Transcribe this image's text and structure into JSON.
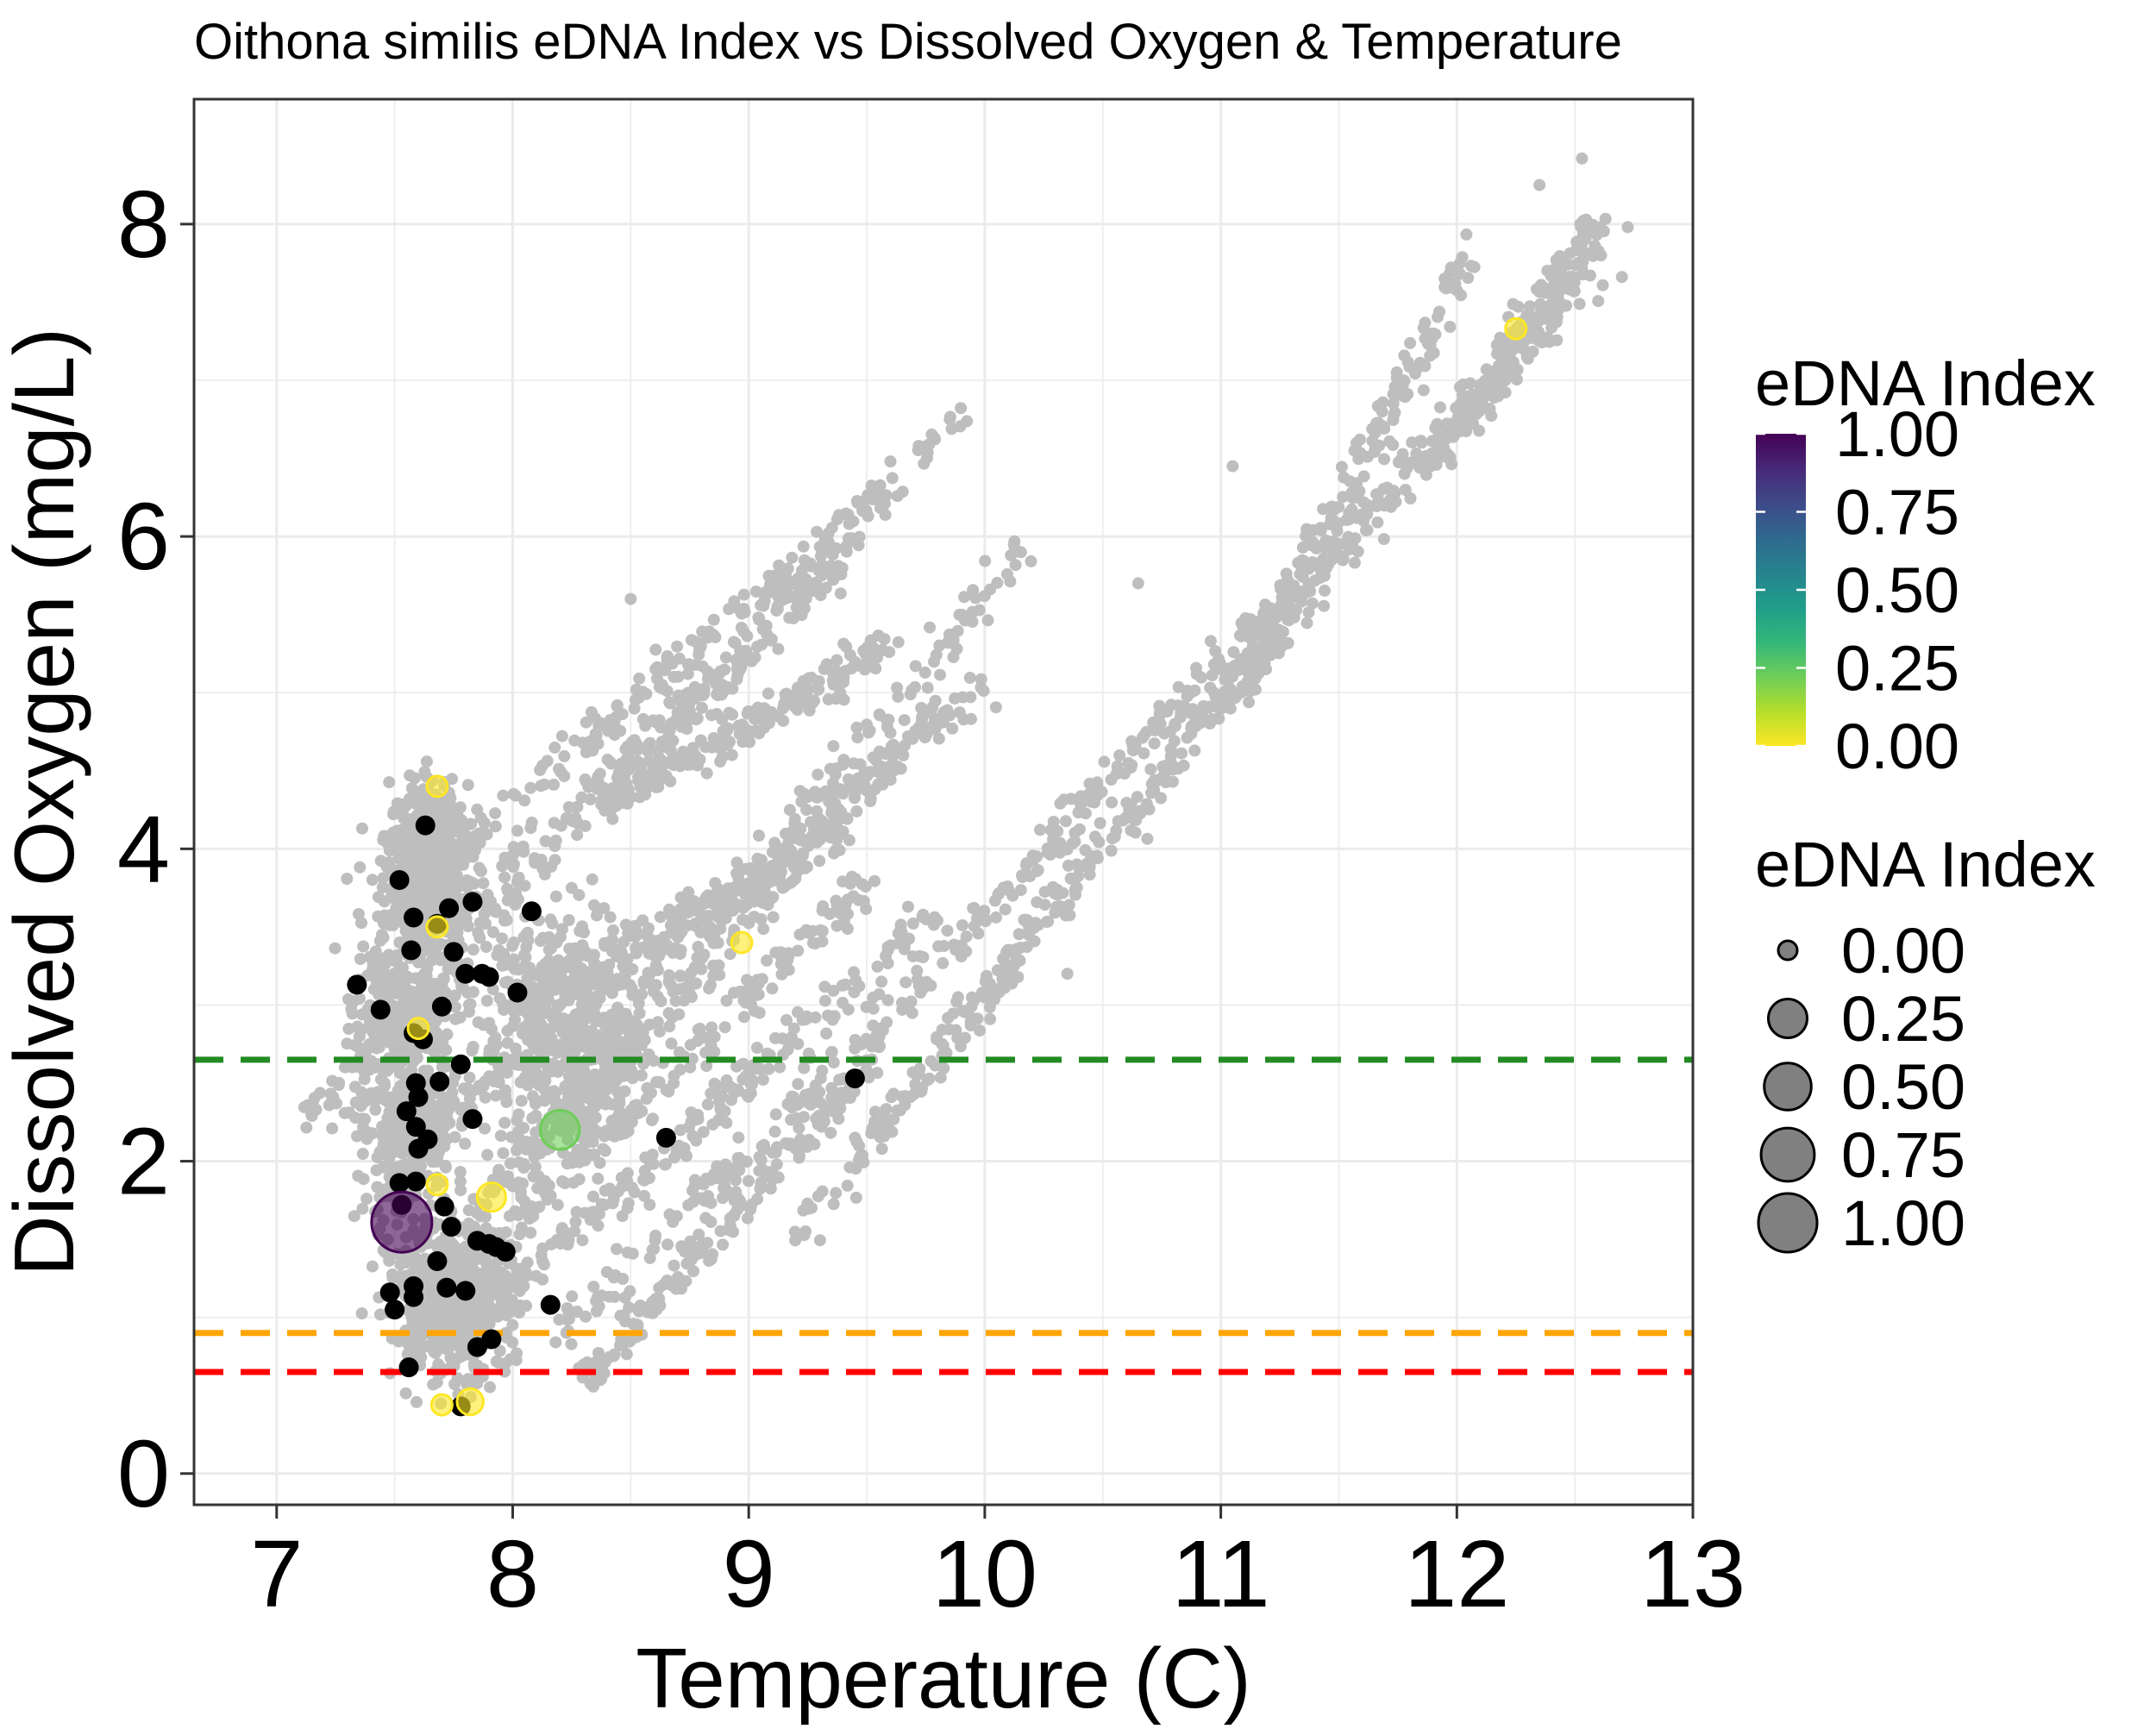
{
  "chart_data": {
    "type": "scatter",
    "title": "Oithona similis eDNA Index vs Dissolved Oxygen & Temperature",
    "xlabel": "Temperature (C)",
    "ylabel": "Dissolved Oxygen (mg/L)",
    "xlim": [
      6.65,
      13.0
    ],
    "ylim": [
      -0.2,
      8.8
    ],
    "x_ticks": [
      7,
      8,
      9,
      10,
      11,
      12,
      13
    ],
    "y_ticks": [
      0,
      2,
      4,
      6,
      8
    ],
    "grid": true,
    "background_cloud_color": "#bebebe",
    "background_cloud": {
      "tracks": [
        {
          "from": [
            7.1,
            2.25
          ],
          "to": [
            9.9,
            6.8
          ]
        },
        {
          "from": [
            7.4,
            3.1
          ],
          "to": [
            9.4,
            5.8
          ]
        },
        {
          "from": [
            7.6,
            3.8
          ],
          "to": [
            9.6,
            6.3
          ]
        },
        {
          "from": [
            7.5,
            2.0
          ],
          "to": [
            10.0,
            5.05
          ]
        },
        {
          "from": [
            7.8,
            1.5
          ],
          "to": [
            9.8,
            4.9
          ]
        },
        {
          "from": [
            7.9,
            1.8
          ],
          "to": [
            10.2,
            6.0
          ]
        },
        {
          "from": [
            7.6,
            1.0
          ],
          "to": [
            9.5,
            3.8
          ]
        },
        {
          "from": [
            8.0,
            1.2
          ],
          "to": [
            9.8,
            3.6
          ]
        },
        {
          "from": [
            8.2,
            0.9
          ],
          "to": [
            10.5,
            4.3
          ]
        },
        {
          "from": [
            8.3,
            0.6
          ],
          "to": [
            9.6,
            2.8
          ]
        },
        {
          "from": [
            9.2,
            1.5
          ],
          "to": [
            11.3,
            5.6
          ]
        },
        {
          "from": [
            9.6,
            2.3
          ],
          "to": [
            12.7,
            8.05
          ]
        },
        {
          "from": [
            10.2,
            4.0
          ],
          "to": [
            12.65,
            7.7
          ]
        },
        {
          "from": [
            11.1,
            5.0
          ],
          "to": [
            12.05,
            7.8
          ]
        },
        {
          "from": [
            11.9,
            6.5
          ],
          "to": [
            12.6,
            8.0
          ]
        },
        {
          "from": [
            8.4,
            4.3
          ],
          "to": [
            9.6,
            5.3
          ]
        },
        {
          "from": [
            8.0,
            3.0
          ],
          "to": [
            9.4,
            4.1
          ]
        }
      ],
      "blobs": [
        {
          "center": [
            7.55,
            2.6
          ],
          "spread": [
            0.35,
            1.8
          ]
        },
        {
          "center": [
            7.75,
            1.1
          ],
          "spread": [
            0.35,
            0.75
          ]
        },
        {
          "center": [
            8.2,
            2.8
          ],
          "spread": [
            0.55,
            1.2
          ]
        },
        {
          "center": [
            7.65,
            3.9
          ],
          "spread": [
            0.25,
            0.7
          ]
        }
      ],
      "outliers": [
        [
          12.53,
          8.42
        ],
        [
          12.35,
          8.25
        ],
        [
          8.5,
          5.6
        ],
        [
          11.05,
          6.45
        ],
        [
          10.65,
          5.7
        ],
        [
          10.35,
          3.2
        ],
        [
          9.45,
          2.15
        ]
      ]
    },
    "reference_lines": [
      {
        "y": 2.65,
        "color": "#228b22"
      },
      {
        "y": 0.9,
        "color": "#ffa500"
      },
      {
        "y": 0.65,
        "color": "#ff0000"
      }
    ],
    "edna_points": [
      {
        "x": 7.68,
        "y": 4.4,
        "index": 0.0
      },
      {
        "x": 7.68,
        "y": 3.5,
        "index": 0.0
      },
      {
        "x": 7.6,
        "y": 2.85,
        "index": 0.0
      },
      {
        "x": 7.68,
        "y": 1.85,
        "index": 0.0
      },
      {
        "x": 7.91,
        "y": 1.77,
        "index": 0.04
      },
      {
        "x": 8.97,
        "y": 3.4,
        "index": 0.0
      },
      {
        "x": 7.7,
        "y": 0.44,
        "index": 0.0
      },
      {
        "x": 7.82,
        "y": 0.46,
        "index": 0.02
      },
      {
        "x": 8.2,
        "y": 2.2,
        "index": 0.22
      },
      {
        "x": 12.25,
        "y": 7.33,
        "index": 0.0
      },
      {
        "x": 7.53,
        "y": 1.61,
        "index": 1.0
      }
    ],
    "na_points": [
      [
        7.52,
        3.8
      ],
      [
        7.63,
        4.15
      ],
      [
        7.58,
        3.56
      ],
      [
        7.68,
        3.52
      ],
      [
        7.73,
        3.62
      ],
      [
        7.83,
        3.66
      ],
      [
        8.08,
        3.6
      ],
      [
        7.57,
        3.35
      ],
      [
        7.75,
        3.34
      ],
      [
        7.34,
        3.13
      ],
      [
        7.8,
        3.2
      ],
      [
        7.87,
        3.2
      ],
      [
        7.9,
        3.18
      ],
      [
        8.02,
        3.08
      ],
      [
        7.44,
        2.97
      ],
      [
        7.7,
        2.99
      ],
      [
        7.58,
        2.82
      ],
      [
        7.62,
        2.78
      ],
      [
        7.78,
        2.62
      ],
      [
        7.69,
        2.51
      ],
      [
        7.59,
        2.5
      ],
      [
        7.6,
        2.41
      ],
      [
        7.55,
        2.32
      ],
      [
        7.83,
        2.27
      ],
      [
        7.59,
        2.22
      ],
      [
        7.64,
        2.14
      ],
      [
        7.6,
        2.08
      ],
      [
        7.52,
        1.86
      ],
      [
        7.59,
        1.87
      ],
      [
        7.53,
        1.72
      ],
      [
        7.71,
        1.71
      ],
      [
        7.74,
        1.58
      ],
      [
        7.85,
        1.49
      ],
      [
        7.9,
        1.47
      ],
      [
        7.93,
        1.45
      ],
      [
        7.97,
        1.42
      ],
      [
        7.68,
        1.36
      ],
      [
        7.58,
        1.2
      ],
      [
        7.72,
        1.19
      ],
      [
        7.8,
        1.17
      ],
      [
        7.48,
        1.16
      ],
      [
        7.58,
        1.13
      ],
      [
        7.5,
        1.05
      ],
      [
        8.16,
        1.08
      ],
      [
        7.91,
        0.86
      ],
      [
        7.85,
        0.81
      ],
      [
        7.56,
        0.68
      ],
      [
        7.78,
        0.43
      ],
      [
        8.65,
        2.15
      ],
      [
        9.45,
        2.53
      ]
    ],
    "na_color": "#000000",
    "legend_colorbar": {
      "title": "eDNA Index",
      "labels": [
        "1.00",
        "0.75",
        "0.50",
        "0.25",
        "0.00"
      ],
      "values": [
        1.0,
        0.75,
        0.5,
        0.25,
        0.0
      ]
    },
    "legend_size": {
      "title": "eDNA Index",
      "labels": [
        "0.00",
        "0.25",
        "0.50",
        "0.75",
        "1.00"
      ],
      "values": [
        0.0,
        0.25,
        0.5,
        0.75,
        1.0
      ]
    },
    "colorscale": [
      "#fde725",
      "#b5de2b",
      "#6ece58",
      "#35b779",
      "#1f9e89",
      "#26828e",
      "#31688e",
      "#3e4989",
      "#482878",
      "#440154"
    ]
  }
}
